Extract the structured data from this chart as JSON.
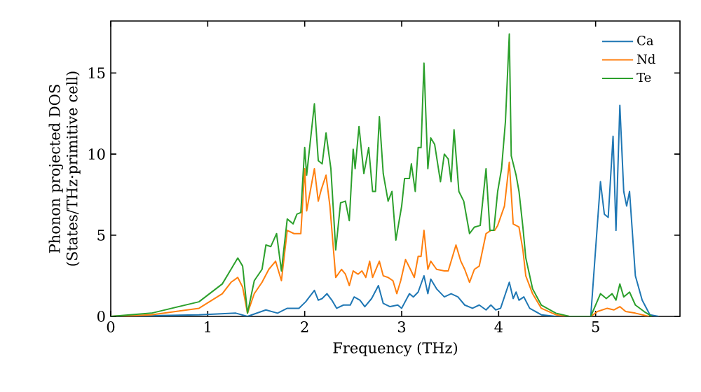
{
  "chart_data": {
    "type": "line",
    "xlabel": "Frequency (THz)",
    "ylabel": "Phonon projected DOS (States/THz·primitive cell)",
    "xlim": [
      0,
      5.87
    ],
    "ylim": [
      0,
      18.2
    ],
    "xticks": [
      0,
      1,
      2,
      3,
      4,
      5
    ],
    "yticks": [
      0,
      5,
      10,
      15
    ],
    "legend": "top right",
    "grid": false,
    "marker": "none",
    "line_style": "solid",
    "series": [
      {
        "name": "Ca",
        "color": "#1f77b4",
        "x": [
          0,
          0.91,
          1.29,
          1.41,
          1.6,
          1.72,
          1.82,
          1.94,
          2.01,
          2.1,
          2.14,
          2.18,
          2.23,
          2.28,
          2.33,
          2.4,
          2.47,
          2.51,
          2.57,
          2.62,
          2.69,
          2.76,
          2.81,
          2.88,
          2.96,
          3.0,
          3.08,
          3.12,
          3.17,
          3.23,
          3.27,
          3.3,
          3.36,
          3.44,
          3.51,
          3.58,
          3.65,
          3.73,
          3.8,
          3.87,
          3.92,
          3.97,
          4.02,
          4.11,
          4.15,
          4.18,
          4.21,
          4.26,
          4.32,
          4.44,
          4.59,
          4.95,
          5.05,
          5.09,
          5.13,
          5.18,
          5.21,
          5.25,
          5.29,
          5.32,
          5.35,
          5.41,
          5.48,
          5.56,
          5.65
        ],
        "values": [
          0,
          0.1,
          0.2,
          0,
          0.4,
          0.2,
          0.5,
          0.5,
          0.9,
          1.6,
          1.0,
          1.1,
          1.4,
          1.0,
          0.5,
          0.7,
          0.7,
          1.2,
          1.0,
          0.6,
          1.1,
          1.9,
          0.8,
          0.6,
          0.7,
          0.5,
          1.4,
          1.2,
          1.5,
          2.5,
          1.4,
          2.3,
          1.7,
          1.2,
          1.4,
          1.2,
          0.7,
          0.5,
          0.7,
          0.4,
          0.7,
          0.4,
          0.5,
          2.1,
          1.1,
          1.5,
          1.0,
          1.2,
          0.5,
          0.1,
          0,
          0,
          8.3,
          6.3,
          6.1,
          11.1,
          5.3,
          13.0,
          7.7,
          6.8,
          7.7,
          2.5,
          1.0,
          0.1,
          0
        ]
      },
      {
        "name": "Nd",
        "color": "#ff7f0e",
        "x": [
          0,
          0.42,
          0.91,
          1.15,
          1.24,
          1.31,
          1.36,
          1.41,
          1.48,
          1.56,
          1.63,
          1.7,
          1.76,
          1.82,
          1.89,
          1.96,
          2.0,
          2.02,
          2.1,
          2.14,
          2.17,
          2.22,
          2.26,
          2.32,
          2.38,
          2.42,
          2.46,
          2.5,
          2.55,
          2.59,
          2.63,
          2.67,
          2.7,
          2.77,
          2.81,
          2.86,
          2.91,
          2.95,
          2.99,
          3.04,
          3.09,
          3.13,
          3.17,
          3.2,
          3.23,
          3.27,
          3.3,
          3.36,
          3.44,
          3.48,
          3.56,
          3.61,
          3.65,
          3.7,
          3.75,
          3.8,
          3.87,
          3.92,
          3.96,
          3.99,
          4.06,
          4.11,
          4.15,
          4.21,
          4.25,
          4.28,
          4.35,
          4.44,
          4.59,
          4.73,
          4.95,
          5.02,
          5.12,
          5.19,
          5.25,
          5.31,
          5.41,
          5.55
        ],
        "values": [
          0,
          0.1,
          0.5,
          1.4,
          2.1,
          2.4,
          1.8,
          0.2,
          1.4,
          2.1,
          2.9,
          3.4,
          2.2,
          5.3,
          5.1,
          5.1,
          9.1,
          6.5,
          9.1,
          7.1,
          7.8,
          8.7,
          6.8,
          2.4,
          2.9,
          2.6,
          1.9,
          2.8,
          2.6,
          2.8,
          2.4,
          3.4,
          2.4,
          3.4,
          2.5,
          2.4,
          2.2,
          1.4,
          2.2,
          3.5,
          2.9,
          2.4,
          3.7,
          3.7,
          5.3,
          2.9,
          3.4,
          2.9,
          2.8,
          2.8,
          4.4,
          3.4,
          2.9,
          2.1,
          2.9,
          3.1,
          5.1,
          5.3,
          5.3,
          5.6,
          6.8,
          9.5,
          5.7,
          5.5,
          4.1,
          2.5,
          1.4,
          0.5,
          0.1,
          0,
          0,
          0.3,
          0.5,
          0.4,
          0.6,
          0.3,
          0.2,
          0
        ]
      },
      {
        "name": "Te",
        "color": "#2ca02c",
        "x": [
          0,
          0.42,
          0.91,
          1.15,
          1.24,
          1.31,
          1.36,
          1.41,
          1.48,
          1.56,
          1.6,
          1.65,
          1.71,
          1.76,
          1.82,
          1.88,
          1.92,
          1.96,
          2.0,
          2.02,
          2.1,
          2.14,
          2.18,
          2.22,
          2.27,
          2.32,
          2.37,
          2.42,
          2.46,
          2.5,
          2.52,
          2.56,
          2.61,
          2.66,
          2.7,
          2.73,
          2.77,
          2.81,
          2.86,
          2.9,
          2.94,
          3.0,
          3.03,
          3.08,
          3.1,
          3.14,
          3.17,
          3.2,
          3.23,
          3.27,
          3.3,
          3.34,
          3.4,
          3.44,
          3.48,
          3.51,
          3.54,
          3.59,
          3.64,
          3.7,
          3.75,
          3.81,
          3.87,
          3.91,
          3.95,
          3.99,
          4.03,
          4.07,
          4.11,
          4.13,
          4.18,
          4.21,
          4.25,
          4.28,
          4.35,
          4.44,
          4.59,
          4.73,
          4.95,
          5.05,
          5.11,
          5.17,
          5.21,
          5.25,
          5.29,
          5.35,
          5.41,
          5.5,
          5.58
        ],
        "values": [
          0,
          0.2,
          0.9,
          2.0,
          2.9,
          3.6,
          3.1,
          0.2,
          2.2,
          2.9,
          4.4,
          4.3,
          5.1,
          2.8,
          6.0,
          5.7,
          6.3,
          6.4,
          10.4,
          8.7,
          13.1,
          9.6,
          9.4,
          11.3,
          9.1,
          4.1,
          7.0,
          7.1,
          5.9,
          10.3,
          9.1,
          11.7,
          8.8,
          10.4,
          7.7,
          7.7,
          12.3,
          8.8,
          7.1,
          7.7,
          4.7,
          6.8,
          8.5,
          8.5,
          9.4,
          7.7,
          10.4,
          10.4,
          15.6,
          9.1,
          11.0,
          10.6,
          8.3,
          10.0,
          9.7,
          8.3,
          11.5,
          7.7,
          7.1,
          5.1,
          5.5,
          5.6,
          9.1,
          5.3,
          5.3,
          7.7,
          9.1,
          12.0,
          17.4,
          9.9,
          8.7,
          7.7,
          5.5,
          3.6,
          1.7,
          0.7,
          0.2,
          0,
          0,
          1.4,
          1.1,
          1.4,
          1.0,
          2.0,
          1.2,
          1.5,
          0.7,
          0.3,
          0
        ]
      }
    ]
  }
}
